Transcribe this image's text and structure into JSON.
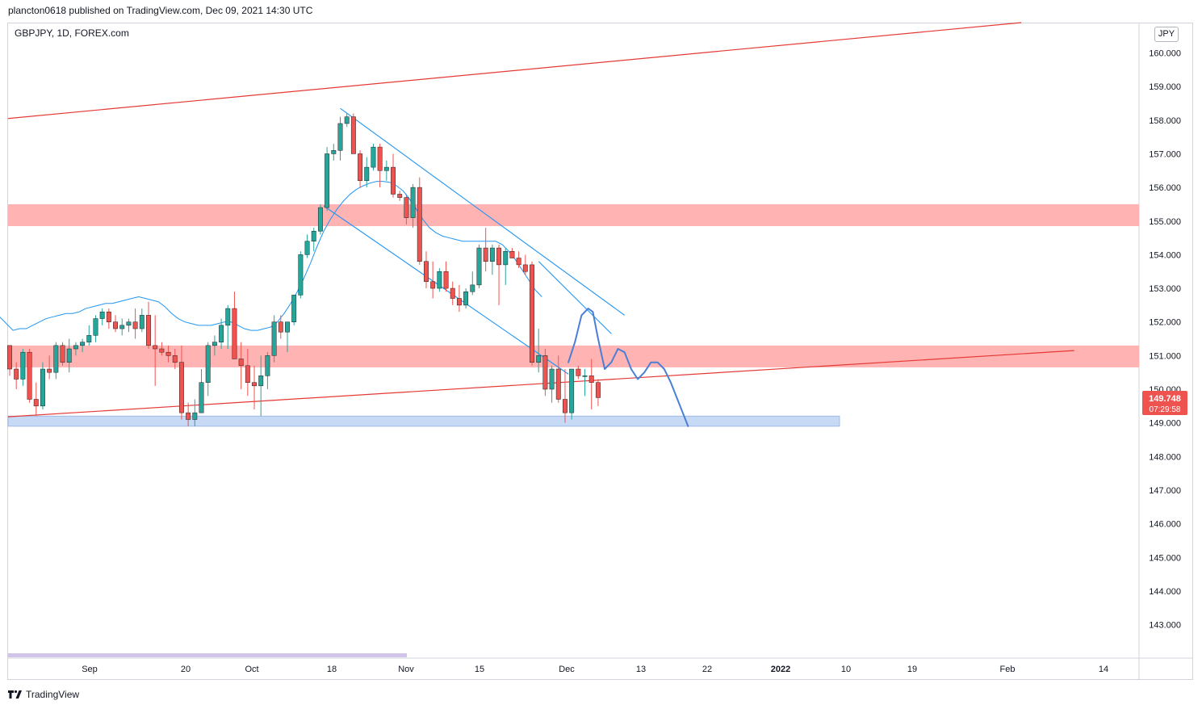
{
  "header": {
    "published_line": "plancton0618 published on TradingView.com, Dec 09, 2021 14:30 UTC"
  },
  "symbol": "GBPJPY, 1D, FOREX.com",
  "currency": "JPY",
  "footer": {
    "brand": "TradingView",
    "logo_icon": "tradingview-logo-icon"
  },
  "price_badge": {
    "price": "149.748",
    "countdown": "07:29:58",
    "color": "#ef5350"
  },
  "chart_data": {
    "type": "candlestick",
    "title": "",
    "xlabel": "",
    "ylabel": "",
    "ylim": [
      142.0,
      160.8
    ],
    "grid": false,
    "price_axis": {
      "side": "right",
      "ticks": [
        "160.000",
        "159.000",
        "158.000",
        "157.000",
        "156.000",
        "155.000",
        "154.000",
        "153.000",
        "152.000",
        "151.000",
        "150.000",
        "149.000",
        "148.000",
        "147.000",
        "146.000",
        "145.000",
        "144.000",
        "143.000"
      ]
    },
    "time_axis": {
      "labels": [
        "Sep",
        "20",
        "Oct",
        "18",
        "Nov",
        "15",
        "Dec",
        "13",
        "22",
        "2022",
        "10",
        "19",
        "Feb",
        "14"
      ],
      "bold_labels": [
        "2022"
      ]
    },
    "colors": {
      "up": "#26a69a",
      "down": "#ef5350",
      "ma": "#2196f3",
      "trend": "#e53935",
      "channel": "#2196f3",
      "projection": "#4a7fd6",
      "zone_red": "#ffb3b3",
      "zone_blue": "#c6d9f5",
      "scrollbar": "#d1c4e9"
    },
    "candles": [
      [
        151.3,
        151.3,
        150.4,
        150.6
      ],
      [
        150.6,
        150.8,
        150.0,
        150.3
      ],
      [
        150.3,
        151.2,
        150.1,
        151.1
      ],
      [
        151.1,
        151.2,
        149.6,
        149.7
      ],
      [
        149.7,
        150.2,
        149.2,
        149.5
      ],
      [
        149.5,
        150.8,
        149.4,
        150.6
      ],
      [
        150.6,
        151.0,
        150.3,
        150.5
      ],
      [
        150.5,
        151.4,
        150.3,
        151.3
      ],
      [
        151.3,
        151.4,
        150.7,
        150.8
      ],
      [
        150.8,
        151.5,
        150.5,
        151.2
      ],
      [
        151.2,
        151.4,
        151.0,
        151.3
      ],
      [
        151.3,
        151.5,
        151.1,
        151.4
      ],
      [
        151.4,
        151.9,
        151.3,
        151.6
      ],
      [
        151.6,
        152.2,
        151.4,
        152.1
      ],
      [
        152.1,
        152.4,
        151.9,
        152.3
      ],
      [
        152.3,
        152.4,
        151.8,
        152.0
      ],
      [
        152.0,
        152.2,
        151.7,
        151.8
      ],
      [
        151.8,
        152.1,
        151.6,
        151.9
      ],
      [
        151.9,
        152.1,
        151.7,
        152.0
      ],
      [
        152.0,
        152.4,
        151.5,
        151.8
      ],
      [
        151.8,
        152.4,
        151.7,
        152.2
      ],
      [
        152.2,
        152.6,
        151.2,
        151.3
      ],
      [
        151.3,
        152.2,
        150.1,
        151.2
      ],
      [
        151.2,
        151.4,
        151.0,
        151.1
      ],
      [
        151.1,
        151.3,
        150.8,
        151.0
      ],
      [
        151.0,
        151.2,
        150.6,
        150.8
      ],
      [
        150.8,
        151.3,
        149.1,
        149.3
      ],
      [
        149.3,
        149.6,
        148.9,
        149.1
      ],
      [
        149.1,
        149.7,
        148.9,
        149.3
      ],
      [
        149.3,
        150.6,
        149.3,
        150.2
      ],
      [
        150.2,
        151.4,
        149.8,
        151.3
      ],
      [
        151.3,
        151.6,
        151.0,
        151.4
      ],
      [
        151.4,
        152.1,
        151.2,
        151.9
      ],
      [
        151.9,
        152.5,
        151.2,
        152.4
      ],
      [
        152.4,
        152.9,
        151.0,
        150.9
      ],
      [
        150.9,
        151.4,
        150.0,
        150.7
      ],
      [
        150.7,
        151.2,
        149.8,
        150.2
      ],
      [
        150.2,
        150.7,
        149.4,
        150.1
      ],
      [
        150.1,
        151.0,
        149.2,
        150.4
      ],
      [
        150.4,
        151.1,
        150.0,
        151.0
      ],
      [
        151.0,
        152.2,
        150.8,
        152.0
      ],
      [
        152.0,
        152.2,
        151.5,
        151.7
      ],
      [
        151.7,
        152.0,
        151.1,
        152.0
      ],
      [
        152.0,
        152.8,
        151.9,
        152.8
      ],
      [
        152.8,
        154.1,
        152.7,
        154.0
      ],
      [
        154.0,
        154.6,
        153.9,
        154.4
      ],
      [
        154.4,
        154.8,
        154.1,
        154.7
      ],
      [
        154.7,
        155.5,
        154.6,
        155.4
      ],
      [
        155.4,
        157.2,
        155.3,
        157.0
      ],
      [
        157.0,
        157.3,
        156.8,
        157.1
      ],
      [
        157.1,
        158.1,
        156.8,
        157.9
      ],
      [
        157.9,
        158.2,
        157.8,
        158.1
      ],
      [
        158.1,
        158.2,
        157.0,
        157.0
      ],
      [
        157.0,
        157.1,
        156.0,
        156.2
      ],
      [
        156.2,
        156.9,
        156.0,
        156.6
      ],
      [
        156.6,
        157.3,
        156.5,
        157.2
      ],
      [
        157.2,
        157.3,
        156.0,
        156.5
      ],
      [
        156.5,
        156.8,
        156.2,
        156.6
      ],
      [
        156.6,
        157.0,
        155.7,
        155.8
      ],
      [
        155.8,
        155.9,
        155.6,
        155.7
      ],
      [
        155.7,
        155.8,
        154.9,
        155.1
      ],
      [
        155.1,
        156.1,
        154.8,
        156.0
      ],
      [
        156.0,
        156.3,
        153.7,
        153.8
      ],
      [
        153.8,
        154.1,
        153.0,
        153.2
      ],
      [
        153.2,
        153.8,
        152.7,
        153.0
      ],
      [
        153.0,
        153.6,
        152.9,
        153.5
      ],
      [
        153.5,
        153.8,
        152.9,
        153.0
      ],
      [
        153.0,
        153.2,
        152.5,
        152.7
      ],
      [
        152.7,
        153.1,
        152.3,
        152.5
      ],
      [
        152.5,
        153.0,
        152.4,
        152.9
      ],
      [
        152.9,
        153.5,
        152.8,
        153.1
      ],
      [
        153.1,
        154.3,
        153.0,
        154.2
      ],
      [
        154.2,
        154.8,
        153.5,
        153.8
      ],
      [
        153.8,
        154.3,
        153.4,
        154.2
      ],
      [
        154.2,
        154.3,
        152.5,
        153.7
      ],
      [
        153.7,
        154.2,
        153.1,
        154.1
      ],
      [
        154.1,
        154.2,
        153.9,
        153.9
      ],
      [
        153.9,
        154.1,
        153.6,
        153.7
      ],
      [
        153.7,
        154.0,
        153.4,
        153.5
      ],
      [
        153.7,
        153.8,
        150.7,
        150.8
      ],
      [
        150.8,
        151.8,
        150.5,
        151.0
      ],
      [
        151.0,
        151.2,
        149.8,
        150.0
      ],
      [
        150.0,
        150.7,
        149.6,
        150.6
      ],
      [
        150.6,
        151.0,
        149.6,
        149.7
      ],
      [
        149.7,
        150.6,
        149.0,
        149.3
      ],
      [
        149.3,
        150.6,
        149.1,
        150.6
      ],
      [
        150.6,
        150.7,
        150.3,
        150.4
      ],
      [
        150.4,
        150.6,
        149.8,
        150.4
      ],
      [
        150.4,
        150.9,
        149.4,
        150.2
      ],
      [
        150.2,
        150.3,
        149.5,
        149.75
      ]
    ],
    "moving_average": [
      151.3,
      151.1,
      150.9,
      150.95,
      150.95,
      151.05,
      151.15,
      151.25,
      151.3,
      151.35,
      151.4,
      151.4,
      151.45,
      151.55,
      151.6,
      151.65,
      151.7,
      151.7,
      151.75,
      151.8,
      151.85,
      151.9,
      151.85,
      151.8,
      151.75,
      151.6,
      151.4,
      151.25,
      151.15,
      151.1,
      151.05,
      151.05,
      151.05,
      151.1,
      151.15,
      151.15,
      151.05,
      150.95,
      150.9,
      150.9,
      150.95,
      151.0,
      151.15,
      151.4,
      151.7,
      152.05,
      152.45,
      152.9,
      153.4,
      153.85,
      154.2,
      154.5,
      154.75,
      154.95,
      155.1,
      155.2,
      155.28,
      155.33,
      155.33,
      155.3,
      155.2,
      155.05,
      154.8,
      154.5,
      154.2,
      153.95,
      153.8,
      153.7,
      153.65,
      153.6,
      153.55,
      153.55,
      153.55,
      153.55,
      153.55,
      153.55,
      153.45,
      153.25,
      153.0,
      152.7,
      152.4,
      152.1,
      151.9
    ]
  }
}
